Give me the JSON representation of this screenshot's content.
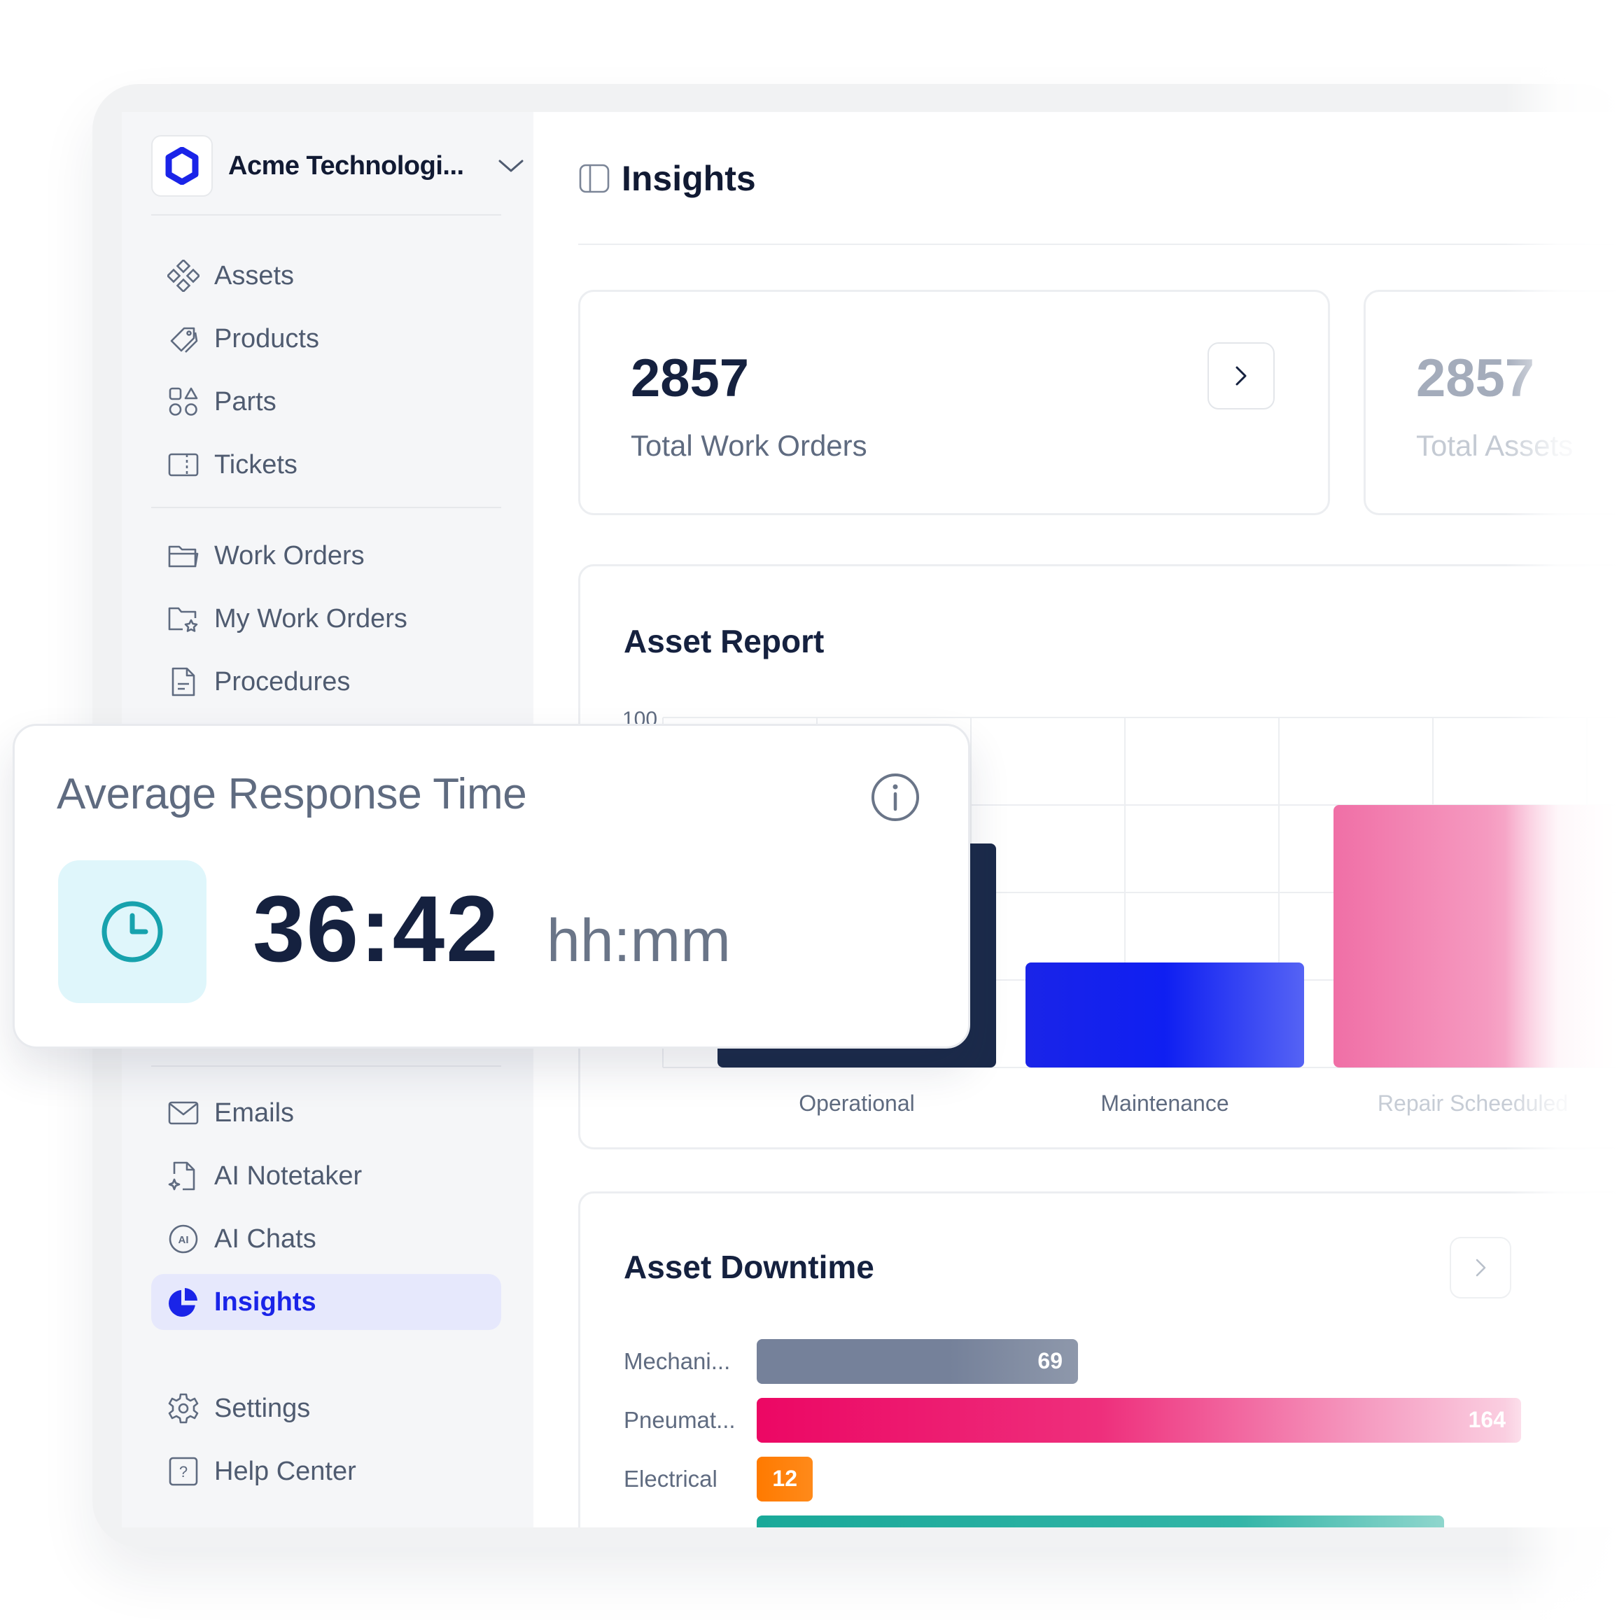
{
  "workspace": {
    "name": "Acme Technologi..."
  },
  "sidebar": {
    "group1": [
      {
        "label": "Assets",
        "icon": "assets-icon"
      },
      {
        "label": "Products",
        "icon": "tag-icon"
      },
      {
        "label": "Parts",
        "icon": "parts-icon"
      },
      {
        "label": "Tickets",
        "icon": "ticket-icon"
      }
    ],
    "group2": [
      {
        "label": "Work Orders",
        "icon": "folder-icon"
      },
      {
        "label": "My Work Orders",
        "icon": "folder-star-icon"
      },
      {
        "label": "Procedures",
        "icon": "document-icon"
      }
    ],
    "group3": [
      {
        "label": "Emails",
        "icon": "mail-icon"
      },
      {
        "label": "AI Notetaker",
        "icon": "ai-note-icon"
      },
      {
        "label": "AI Chats",
        "icon": "ai-chat-icon"
      },
      {
        "label": "Insights",
        "icon": "pie-chart-icon",
        "active": true
      }
    ],
    "footer": [
      {
        "label": "Settings",
        "icon": "gear-icon"
      },
      {
        "label": "Help Center",
        "icon": "help-icon"
      }
    ]
  },
  "header": {
    "title": "Insights"
  },
  "stats": {
    "work_orders": {
      "value": "2857",
      "label": "Total Work Orders"
    },
    "assets": {
      "value": "2857",
      "label": "Total Assets"
    }
  },
  "asset_report": {
    "title": "Asset Report",
    "chart_data": {
      "type": "bar",
      "categories": [
        "Operational",
        "Maintenance",
        "Repair Scheeduled"
      ],
      "values": [
        64,
        30,
        75
      ],
      "ylim": [
        0,
        100
      ],
      "y_top_tick": "100",
      "colors": [
        "#1b2a4a",
        "#1a24e8",
        "#f06fa6"
      ]
    }
  },
  "asset_downtime": {
    "title": "Asset Downtime",
    "chart_data": {
      "type": "bar",
      "orientation": "horizontal",
      "categories": [
        "Mechani...",
        "Pneumat...",
        "Electrical"
      ],
      "values": [
        69,
        164,
        12
      ],
      "colors": [
        "#75819a",
        "#ec0764",
        "#ff7a00"
      ],
      "partial_next_color": "#1aa999"
    }
  },
  "response_time": {
    "title": "Average Response Time",
    "value": "36:42",
    "unit": "hh:mm"
  }
}
